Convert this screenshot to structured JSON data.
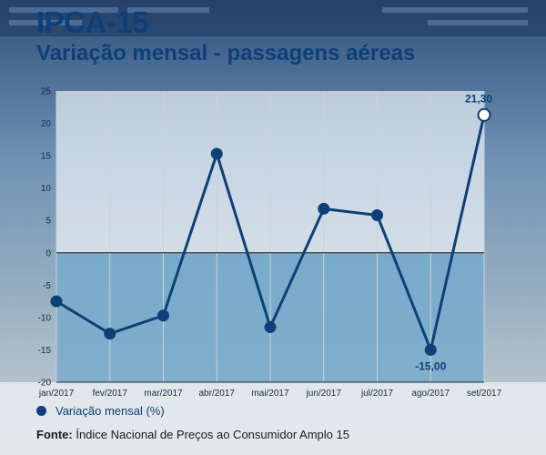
{
  "title": "IPCA-15",
  "subtitle": "Variação mensal - passagens aéreas",
  "chart_data": {
    "type": "line",
    "categories": [
      "jan/2017",
      "fev/2017",
      "mar/2017",
      "abr/2017",
      "mai/2017",
      "jun/2017",
      "jul/2017",
      "ago/2017",
      "set/2017"
    ],
    "series": [
      {
        "name": "Variação mensal (%)",
        "values": [
          -7.5,
          -12.5,
          -9.7,
          15.3,
          -11.5,
          6.8,
          5.8,
          -15.0,
          21.3
        ]
      }
    ],
    "yticks": [
      -20,
      -15,
      -10,
      -5,
      0,
      5,
      10,
      15,
      20,
      25
    ],
    "ytick_labels": [
      "-20",
      "-15",
      "-10",
      "-5",
      "0",
      "5",
      "10",
      "15",
      "20",
      "25"
    ],
    "ylim": [
      -20,
      25
    ],
    "data_labels": [
      {
        "index": 7,
        "text": "-15,00"
      },
      {
        "index": 8,
        "text": "21,30"
      }
    ],
    "grid": "vertical",
    "legend_position": "bottom-left",
    "colors": {
      "line": "#0d3f78",
      "title": "#0d3f78",
      "negative_area": "#3f88b8"
    }
  },
  "legend": {
    "label": "Variação mensal (%)"
  },
  "source": {
    "label": "Fonte:",
    "text": "Índice Nacional de Preços ao Consumidor Amplo 15"
  }
}
